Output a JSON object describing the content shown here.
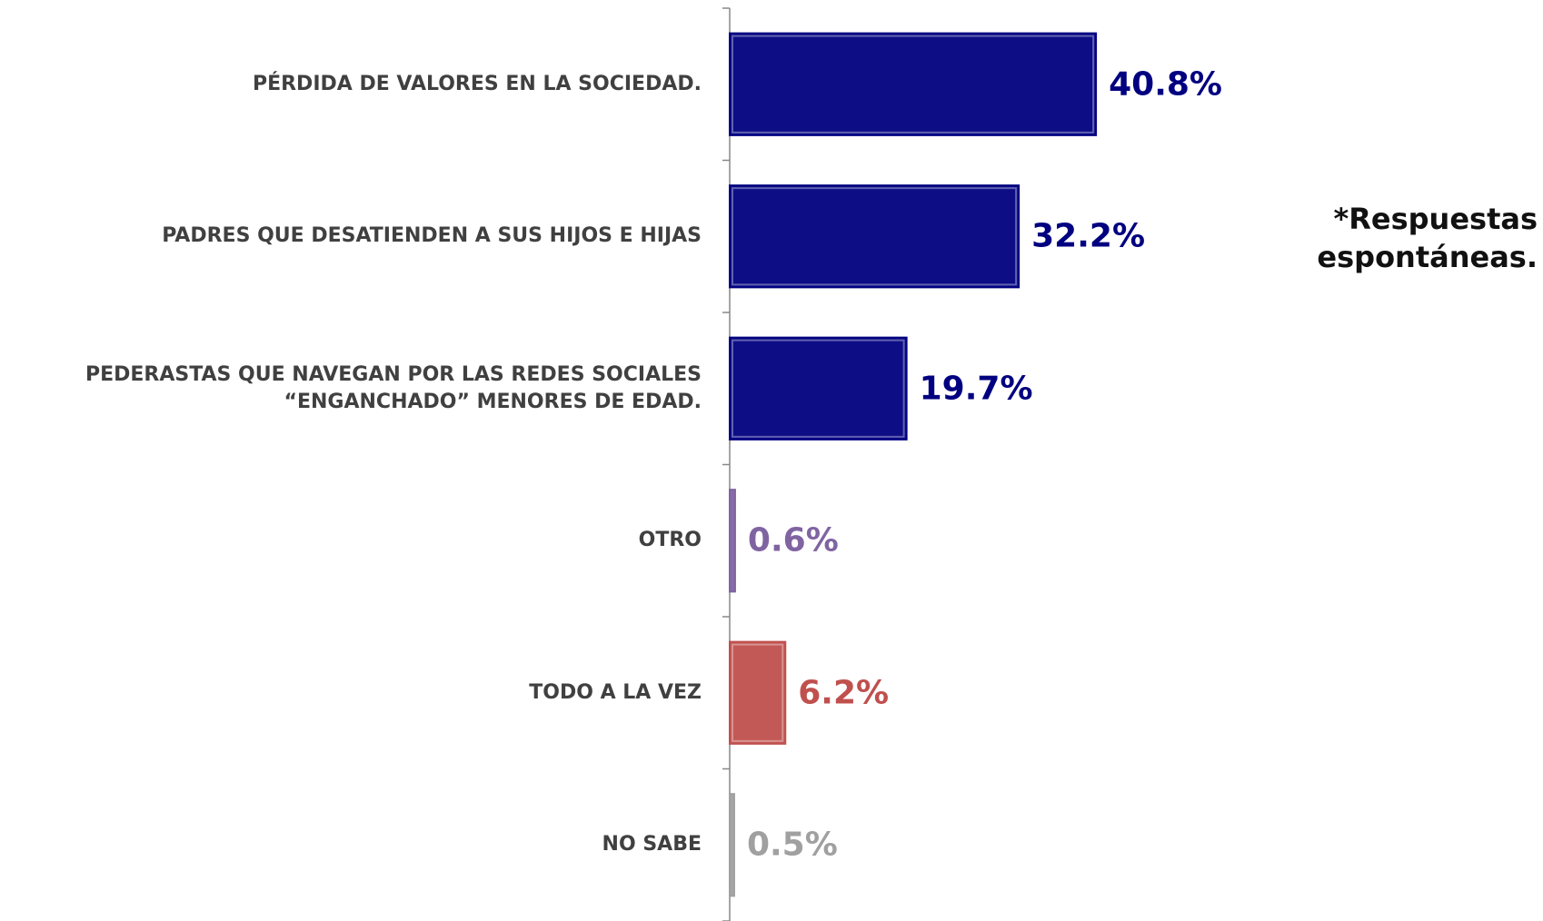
{
  "chart_data": {
    "type": "bar",
    "orientation": "horizontal",
    "categories": [
      "PÉRDIDA DE VALORES EN LA SOCIEDAD.",
      "PADRES QUE DESATIENDEN A SUS HIJOS E HIJAS",
      "PEDERASTAS QUE NAVEGAN POR LAS REDES SOCIALES\n“ENGANCHADO” MENORES DE EDAD.",
      "OTRO",
      "TODO A LA VEZ",
      "NO SABE"
    ],
    "values": [
      40.8,
      32.2,
      19.7,
      0.6,
      6.2,
      0.5
    ],
    "value_labels": [
      "40.8%",
      "32.2%",
      "19.7%",
      "0.6%",
      "6.2%",
      "0.5%"
    ],
    "colors": [
      "#000080",
      "#000080",
      "#000080",
      "#8064a2",
      "#c0504d",
      "#a0a0a0"
    ],
    "xlim": [
      0,
      50
    ],
    "annotation": [
      "*Respuestas",
      "espontáneas."
    ]
  }
}
